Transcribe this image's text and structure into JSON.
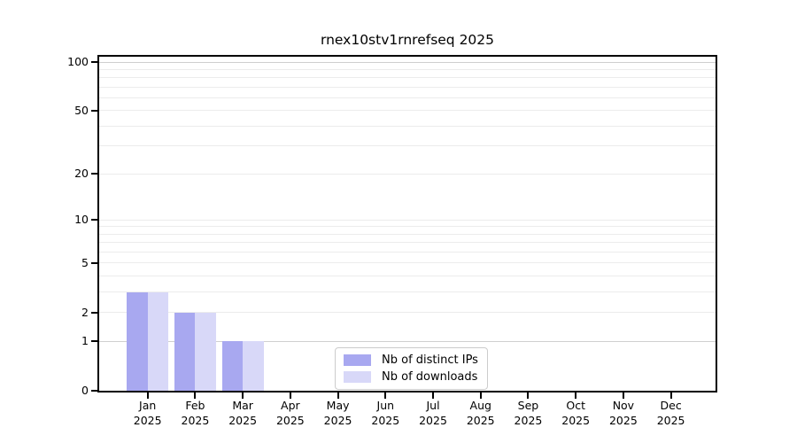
{
  "chart_data": {
    "type": "bar",
    "title": "rnex10stv1rnrefseq 2025",
    "year": "2025",
    "categories": [
      "Jan",
      "Feb",
      "Mar",
      "Apr",
      "May",
      "Jun",
      "Jul",
      "Aug",
      "Sep",
      "Oct",
      "Nov",
      "Dec"
    ],
    "series": [
      {
        "name": "Nb of distinct IPs",
        "color": "#a8a8f0",
        "values": [
          3,
          2,
          1,
          0,
          0,
          0,
          0,
          0,
          0,
          0,
          0,
          0
        ]
      },
      {
        "name": "Nb of downloads",
        "color": "#d8d8f8",
        "values": [
          3,
          2,
          1,
          0,
          0,
          0,
          0,
          0,
          0,
          0,
          0,
          0
        ]
      }
    ],
    "y_scale": "log10(1+v)",
    "y_ticks": [
      100,
      50,
      20,
      10,
      5,
      2,
      1,
      0
    ],
    "y_gridlines": [
      1,
      2,
      3,
      4,
      5,
      6,
      7,
      8,
      9,
      10,
      20,
      30,
      40,
      50,
      60,
      70,
      80,
      90,
      100
    ],
    "ylim": [
      0,
      108
    ],
    "grid_on": true,
    "legend_position": "lower center",
    "colors": {
      "axis": "#000000",
      "grid_minor": "#ececec",
      "grid_emphasis": "#cfcfcf",
      "legend_border": "#cccccc",
      "legend_background": "#ffffff",
      "text": "#000000"
    }
  }
}
